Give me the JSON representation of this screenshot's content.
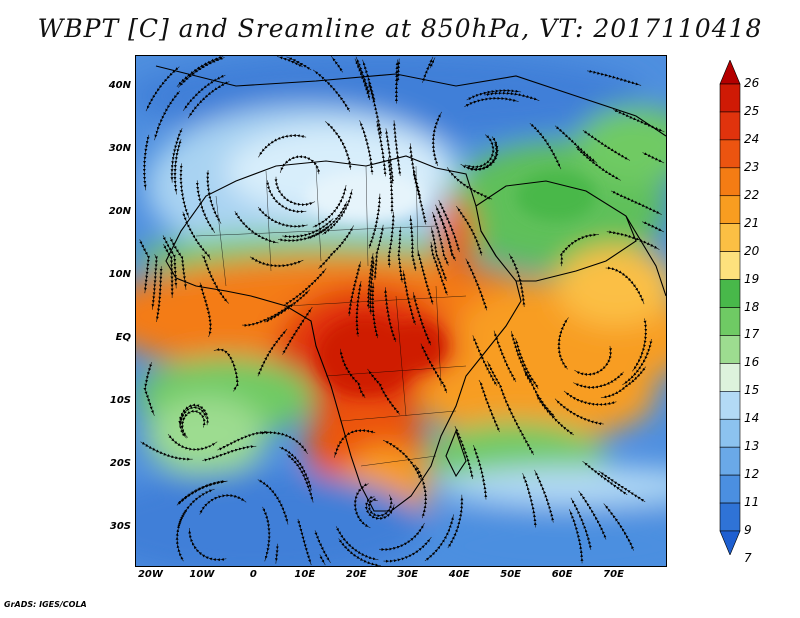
{
  "title": "WBPT [C] and Sreamline at 850hPa, VT: 2017110418",
  "credit": "GrADS: IGES/COLA",
  "map": {
    "lon_range": [
      -23,
      80
    ],
    "lat_range": [
      -36,
      45
    ],
    "lat_ticks": [
      {
        "value": 40,
        "label": "40N"
      },
      {
        "value": 30,
        "label": "30N"
      },
      {
        "value": 20,
        "label": "20N"
      },
      {
        "value": 10,
        "label": "10N"
      },
      {
        "value": 0,
        "label": "EQ"
      },
      {
        "value": -10,
        "label": "10S"
      },
      {
        "value": -20,
        "label": "20S"
      },
      {
        "value": -30,
        "label": "30S"
      }
    ],
    "lon_ticks": [
      {
        "value": -20,
        "label": "20W"
      },
      {
        "value": -10,
        "label": "10W"
      },
      {
        "value": 0,
        "label": "0"
      },
      {
        "value": 10,
        "label": "10E"
      },
      {
        "value": 20,
        "label": "20E"
      },
      {
        "value": 30,
        "label": "30E"
      },
      {
        "value": 40,
        "label": "40E"
      },
      {
        "value": 50,
        "label": "50E"
      },
      {
        "value": 60,
        "label": "60E"
      },
      {
        "value": 70,
        "label": "70E"
      }
    ],
    "colorbar": {
      "labels": [
        "26",
        "25",
        "24",
        "23",
        "22",
        "21",
        "20",
        "19",
        "18",
        "17",
        "16",
        "15",
        "14",
        "13",
        "12",
        "11",
        "9",
        "7"
      ],
      "colors": [
        "#b40000",
        "#cf1a05",
        "#e0330d",
        "#ec5410",
        "#f47c14",
        "#f89d20",
        "#fbbf44",
        "#fde17d",
        "#48b84a",
        "#6fca64",
        "#9ddc90",
        "#ddf3dc",
        "#b3daf5",
        "#8cc3ef",
        "#6aa9e8",
        "#4b8fe0",
        "#2f73d6",
        "#1e5fd0"
      ]
    }
  }
}
